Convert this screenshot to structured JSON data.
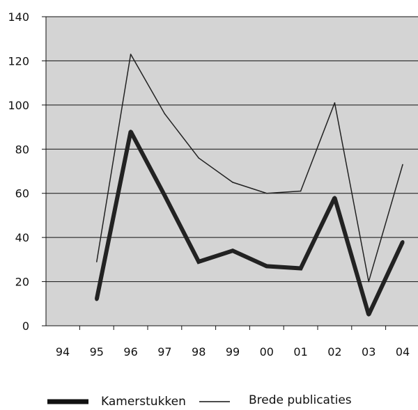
{
  "chart_data": {
    "type": "line",
    "title": "",
    "xlabel": "",
    "ylabel": "",
    "categories": [
      "94",
      "95",
      "96",
      "97",
      "98",
      "99",
      "00",
      "01",
      "02",
      "03",
      "04"
    ],
    "ylim": [
      0,
      140
    ],
    "yticks": [
      0,
      20,
      40,
      60,
      80,
      100,
      120,
      140
    ],
    "grid": true,
    "plot_background": "#d4d4d4",
    "legend_position": "bottom",
    "series": [
      {
        "name": "Kamerstukken",
        "color": "#222222",
        "style": "thick",
        "values": [
          null,
          12,
          88,
          59,
          29,
          34,
          27,
          26,
          58,
          5,
          38
        ]
      },
      {
        "name": "Brede publicaties",
        "color": "#222222",
        "style": "thin",
        "values": [
          null,
          29,
          123,
          96,
          76,
          65,
          60,
          61,
          101,
          20,
          73
        ]
      }
    ]
  }
}
